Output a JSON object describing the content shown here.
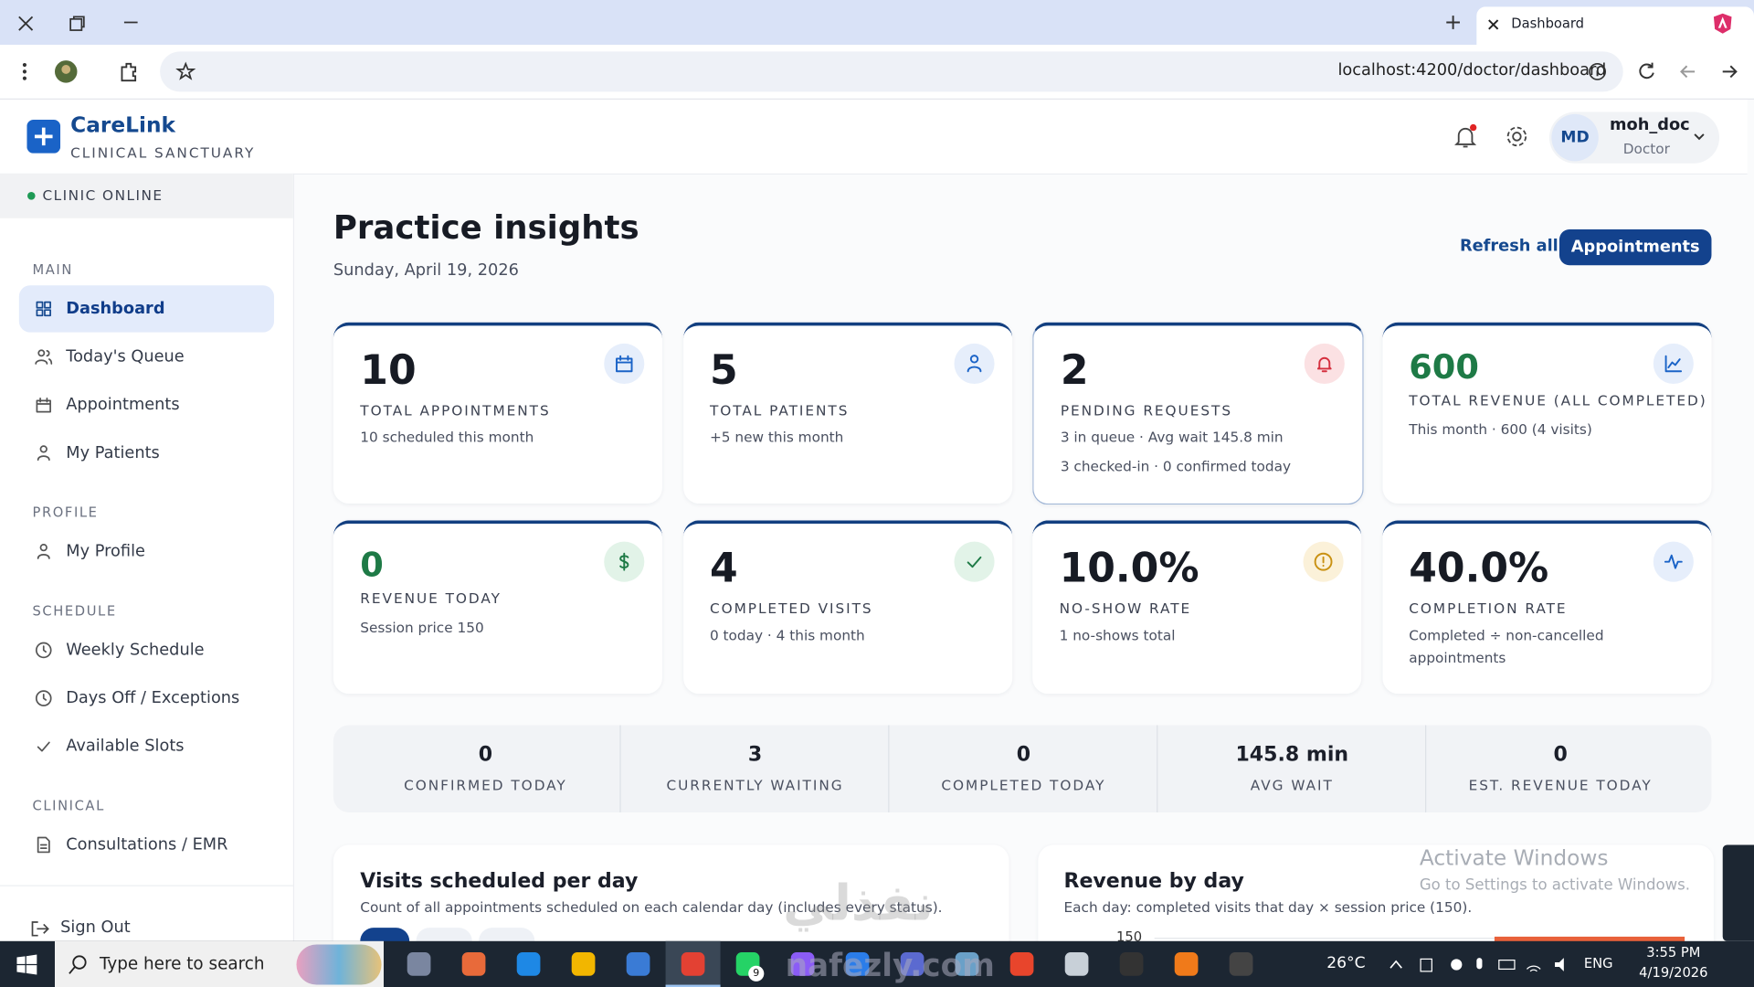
{
  "browser": {
    "tab_title": "Dashboard",
    "url": "localhost:4200/doctor/dashboard"
  },
  "header": {
    "brand": "CareLink",
    "tagline": "CLINICAL SANCTUARY",
    "user_initials": "MD",
    "user_name": "moh_doc",
    "user_role": "Doctor"
  },
  "sidebar": {
    "status": "CLINIC ONLINE",
    "sections": [
      {
        "title": "MAIN",
        "items": [
          "Dashboard",
          "Today's Queue",
          "Appointments",
          "My Patients"
        ]
      },
      {
        "title": "PROFILE",
        "items": [
          "My Profile"
        ]
      },
      {
        "title": "SCHEDULE",
        "items": [
          "Weekly Schedule",
          "Days Off / Exceptions",
          "Available Slots"
        ]
      },
      {
        "title": "CLINICAL",
        "items": [
          "Consultations / EMR"
        ]
      }
    ],
    "sign_out": "Sign Out"
  },
  "page": {
    "title": "Practice insights",
    "date": "Sunday, April 19, 2026",
    "refresh": "Refresh all",
    "appointments_button": "Appointments"
  },
  "cards": [
    {
      "value": "10",
      "label": "TOTAL APPOINTMENTS",
      "lines": [
        "10 scheduled this month"
      ]
    },
    {
      "value": "5",
      "label": "TOTAL PATIENTS",
      "lines": [
        "+5 new this month"
      ]
    },
    {
      "value": "2",
      "label": "PENDING REQUESTS",
      "lines": [
        "3 in queue · Avg wait 145.8 min",
        "3 checked-in · 0 confirmed today"
      ]
    },
    {
      "value": "600",
      "label": "TOTAL REVENUE (ALL COMPLETED)",
      "lines": [
        "This month · 600 (4 visits)"
      ]
    },
    {
      "value": "0",
      "label": "REVENUE TODAY",
      "lines": [
        "Session price 150"
      ]
    },
    {
      "value": "4",
      "label": "COMPLETED VISITS",
      "lines": [
        "0 today · 4 this month"
      ]
    },
    {
      "value": "10.0%",
      "label": "NO-SHOW RATE",
      "lines": [
        "1 no-shows total"
      ]
    },
    {
      "value": "40.0%",
      "label": "COMPLETION RATE",
      "lines": [
        "Completed ÷ non-cancelled appointments"
      ]
    }
  ],
  "summary": [
    {
      "value": "0",
      "label": "CONFIRMED TODAY"
    },
    {
      "value": "3",
      "label": "CURRENTLY WAITING"
    },
    {
      "value": "0",
      "label": "COMPLETED TODAY"
    },
    {
      "value": "145.8 min",
      "label": "AVG WAIT"
    },
    {
      "value": "0",
      "label": "EST. REVENUE TODAY"
    }
  ],
  "panels": [
    {
      "title": "Visits scheduled per day",
      "subtitle": "Count of all appointments scheduled on each calendar day (includes every status)."
    },
    {
      "title": "Revenue by day",
      "subtitle": "Each day: completed visits that day × session price (150).",
      "tick": "150"
    }
  ],
  "overlay": {
    "activate_title": "Activate Windows",
    "activate_text": "Go to Settings to activate Windows.",
    "watermark": "nafezly.com",
    "watermark_ar": "نفذلي"
  },
  "taskbar": {
    "search": "Type here to search",
    "badge": "9",
    "temperature": "26°C",
    "language": "ENG",
    "time": "3:55 PM",
    "date": "4/19/2026"
  }
}
